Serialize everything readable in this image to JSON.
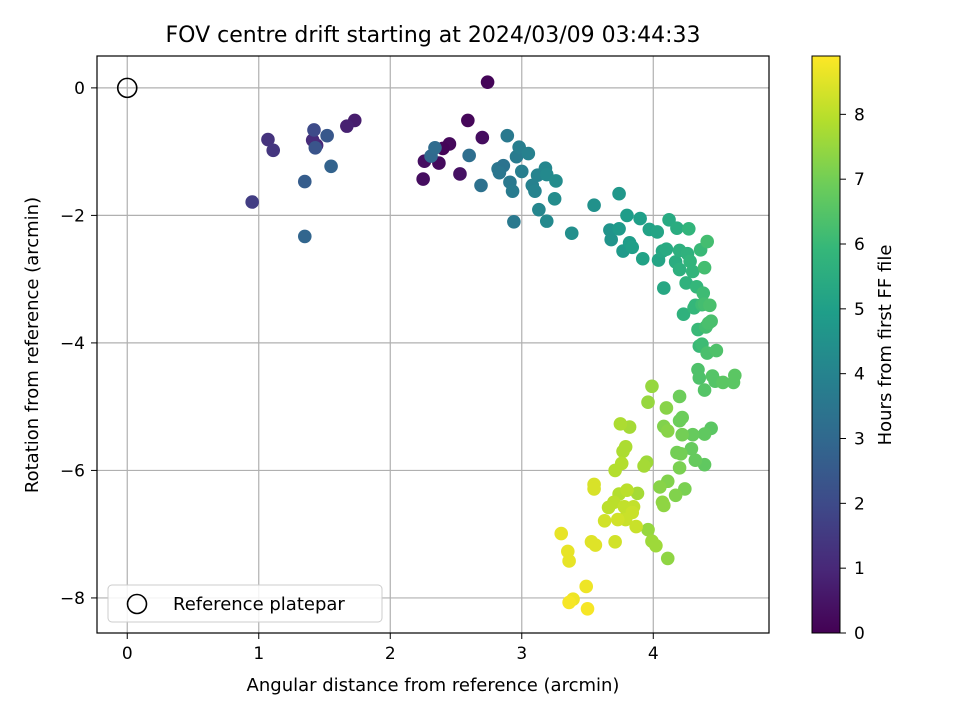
{
  "chart_data": {
    "type": "scatter",
    "title": "FOV centre drift starting at 2024/03/09 03:44:33",
    "xlabel": "Angular distance from reference (arcmin)",
    "ylabel": "Rotation from reference (arcmin)",
    "xlim": [
      -0.23,
      4.88
    ],
    "ylim": [
      -8.55,
      0.5
    ],
    "x_ticks": [
      0,
      1,
      2,
      3,
      4
    ],
    "y_ticks": [
      0,
      -2,
      -4,
      -6,
      -8
    ],
    "grid": true,
    "legend": {
      "placement": "lower-left",
      "entries": [
        "Reference platepar"
      ]
    },
    "reference_point": {
      "x": 0,
      "y": 0,
      "label": "Reference platepar"
    },
    "colorbar": {
      "label": "Hours from first FF file",
      "colormap": "viridis",
      "range": [
        0,
        8.9
      ],
      "ticks": [
        0,
        1,
        2,
        3,
        4,
        5,
        6,
        7,
        8
      ]
    },
    "points": [
      {
        "x": 2.74,
        "y": 0.09,
        "h": 0.1
      },
      {
        "x": 2.59,
        "y": -0.51,
        "h": 0.15
      },
      {
        "x": 2.7,
        "y": -0.78,
        "h": 0.3
      },
      {
        "x": 2.45,
        "y": -0.88,
        "h": 0.2
      },
      {
        "x": 2.4,
        "y": -0.95,
        "h": 0.1
      },
      {
        "x": 2.37,
        "y": -1.18,
        "h": 0.25
      },
      {
        "x": 2.26,
        "y": -1.15,
        "h": 0.35
      },
      {
        "x": 2.25,
        "y": -1.43,
        "h": 0.3
      },
      {
        "x": 2.53,
        "y": -1.35,
        "h": 0.4
      },
      {
        "x": 1.73,
        "y": -0.51,
        "h": 0.7
      },
      {
        "x": 1.67,
        "y": -0.6,
        "h": 0.8
      },
      {
        "x": 1.44,
        "y": -0.9,
        "h": 1.0
      },
      {
        "x": 1.41,
        "y": -0.82,
        "h": 1.1
      },
      {
        "x": 1.07,
        "y": -0.81,
        "h": 1.3
      },
      {
        "x": 1.11,
        "y": -0.98,
        "h": 1.4
      },
      {
        "x": 0.95,
        "y": -1.79,
        "h": 1.6
      },
      {
        "x": 1.42,
        "y": -0.66,
        "h": 2.0
      },
      {
        "x": 1.52,
        "y": -0.75,
        "h": 2.4
      },
      {
        "x": 1.43,
        "y": -0.94,
        "h": 2.3
      },
      {
        "x": 1.35,
        "y": -1.47,
        "h": 2.6
      },
      {
        "x": 1.55,
        "y": -1.23,
        "h": 2.8
      },
      {
        "x": 1.35,
        "y": -2.33,
        "h": 2.9
      },
      {
        "x": 2.31,
        "y": -1.07,
        "h": 3.0
      },
      {
        "x": 2.34,
        "y": -0.94,
        "h": 3.1
      },
      {
        "x": 2.6,
        "y": -1.06,
        "h": 3.2
      },
      {
        "x": 2.69,
        "y": -1.53,
        "h": 3.3
      },
      {
        "x": 2.82,
        "y": -1.27,
        "h": 3.5
      },
      {
        "x": 2.86,
        "y": -1.22,
        "h": 3.4
      },
      {
        "x": 2.83,
        "y": -1.33,
        "h": 3.5
      },
      {
        "x": 2.89,
        "y": -0.75,
        "h": 3.6
      },
      {
        "x": 2.91,
        "y": -1.48,
        "h": 3.6
      },
      {
        "x": 2.93,
        "y": -1.62,
        "h": 3.7
      },
      {
        "x": 2.94,
        "y": -2.1,
        "h": 3.6
      },
      {
        "x": 2.96,
        "y": -1.08,
        "h": 3.7
      },
      {
        "x": 2.98,
        "y": -0.93,
        "h": 3.8
      },
      {
        "x": 3.0,
        "y": -1.31,
        "h": 3.8
      },
      {
        "x": 3.05,
        "y": -1.03,
        "h": 3.9
      },
      {
        "x": 3.08,
        "y": -1.53,
        "h": 3.9
      },
      {
        "x": 3.1,
        "y": -1.62,
        "h": 4.0
      },
      {
        "x": 3.12,
        "y": -1.37,
        "h": 4.0
      },
      {
        "x": 3.13,
        "y": -1.91,
        "h": 4.1
      },
      {
        "x": 3.18,
        "y": -1.26,
        "h": 4.1
      },
      {
        "x": 3.19,
        "y": -1.36,
        "h": 4.2
      },
      {
        "x": 3.19,
        "y": -2.09,
        "h": 4.2
      },
      {
        "x": 3.26,
        "y": -1.46,
        "h": 4.3
      },
      {
        "x": 3.25,
        "y": -1.74,
        "h": 4.3
      },
      {
        "x": 3.38,
        "y": -2.28,
        "h": 4.4
      },
      {
        "x": 3.55,
        "y": -1.84,
        "h": 4.5
      },
      {
        "x": 3.67,
        "y": -2.23,
        "h": 4.6
      },
      {
        "x": 3.68,
        "y": -2.38,
        "h": 4.6
      },
      {
        "x": 3.74,
        "y": -1.66,
        "h": 4.7
      },
      {
        "x": 3.74,
        "y": -2.21,
        "h": 4.8
      },
      {
        "x": 3.77,
        "y": -2.56,
        "h": 4.8
      },
      {
        "x": 3.82,
        "y": -2.43,
        "h": 4.9
      },
      {
        "x": 3.8,
        "y": -2.0,
        "h": 4.9
      },
      {
        "x": 3.84,
        "y": -2.5,
        "h": 5.0
      },
      {
        "x": 3.9,
        "y": -2.05,
        "h": 5.0
      },
      {
        "x": 3.92,
        "y": -2.68,
        "h": 5.1
      },
      {
        "x": 3.97,
        "y": -2.22,
        "h": 5.1
      },
      {
        "x": 4.03,
        "y": -2.26,
        "h": 5.2
      },
      {
        "x": 4.04,
        "y": -2.7,
        "h": 5.2
      },
      {
        "x": 4.07,
        "y": -2.56,
        "h": 5.3
      },
      {
        "x": 4.08,
        "y": -3.14,
        "h": 5.3
      },
      {
        "x": 4.1,
        "y": -2.53,
        "h": 5.4
      },
      {
        "x": 4.12,
        "y": -2.07,
        "h": 5.4
      },
      {
        "x": 4.18,
        "y": -2.2,
        "h": 5.5
      },
      {
        "x": 4.17,
        "y": -2.73,
        "h": 5.5
      },
      {
        "x": 4.2,
        "y": -2.85,
        "h": 5.6
      },
      {
        "x": 4.2,
        "y": -2.55,
        "h": 5.6
      },
      {
        "x": 4.23,
        "y": -3.55,
        "h": 5.7
      },
      {
        "x": 4.25,
        "y": -3.06,
        "h": 5.7
      },
      {
        "x": 4.26,
        "y": -2.6,
        "h": 5.7
      },
      {
        "x": 4.27,
        "y": -2.21,
        "h": 5.8
      },
      {
        "x": 4.28,
        "y": -2.72,
        "h": 5.8
      },
      {
        "x": 4.3,
        "y": -2.88,
        "h": 5.8
      },
      {
        "x": 4.31,
        "y": -3.45,
        "h": 5.9
      },
      {
        "x": 4.32,
        "y": -3.41,
        "h": 5.9
      },
      {
        "x": 4.33,
        "y": -3.12,
        "h": 5.9
      },
      {
        "x": 4.34,
        "y": -3.79,
        "h": 6.0
      },
      {
        "x": 4.35,
        "y": -4.05,
        "h": 6.0
      },
      {
        "x": 4.36,
        "y": -2.54,
        "h": 6.0
      },
      {
        "x": 4.37,
        "y": -4.02,
        "h": 6.1
      },
      {
        "x": 4.37,
        "y": -3.4,
        "h": 6.1
      },
      {
        "x": 4.38,
        "y": -3.22,
        "h": 6.1
      },
      {
        "x": 4.39,
        "y": -3.39,
        "h": 6.2
      },
      {
        "x": 4.39,
        "y": -2.82,
        "h": 6.2
      },
      {
        "x": 4.4,
        "y": -3.75,
        "h": 6.2
      },
      {
        "x": 4.41,
        "y": -2.41,
        "h": 6.2
      },
      {
        "x": 4.42,
        "y": -3.69,
        "h": 6.3
      },
      {
        "x": 4.41,
        "y": -4.16,
        "h": 6.3
      },
      {
        "x": 4.43,
        "y": -3.41,
        "h": 6.3
      },
      {
        "x": 4.44,
        "y": -3.66,
        "h": 6.3
      },
      {
        "x": 4.48,
        "y": -4.12,
        "h": 6.4
      },
      {
        "x": 4.34,
        "y": -4.42,
        "h": 6.4
      },
      {
        "x": 4.35,
        "y": -4.55,
        "h": 6.4
      },
      {
        "x": 4.39,
        "y": -4.74,
        "h": 6.5
      },
      {
        "x": 4.45,
        "y": -4.52,
        "h": 6.5
      },
      {
        "x": 4.47,
        "y": -4.6,
        "h": 6.5
      },
      {
        "x": 4.53,
        "y": -4.62,
        "h": 6.6
      },
      {
        "x": 4.61,
        "y": -4.62,
        "h": 6.6
      },
      {
        "x": 4.62,
        "y": -4.51,
        "h": 6.6
      },
      {
        "x": 4.44,
        "y": -5.34,
        "h": 6.6
      },
      {
        "x": 4.39,
        "y": -5.43,
        "h": 6.7
      },
      {
        "x": 4.39,
        "y": -5.91,
        "h": 6.7
      },
      {
        "x": 4.3,
        "y": -5.44,
        "h": 6.8
      },
      {
        "x": 4.32,
        "y": -5.84,
        "h": 6.8
      },
      {
        "x": 4.29,
        "y": -5.66,
        "h": 6.8
      },
      {
        "x": 4.22,
        "y": -5.17,
        "h": 6.9
      },
      {
        "x": 4.2,
        "y": -5.22,
        "h": 6.9
      },
      {
        "x": 4.2,
        "y": -4.84,
        "h": 6.9
      },
      {
        "x": 4.22,
        "y": -5.44,
        "h": 7.0
      },
      {
        "x": 4.18,
        "y": -5.72,
        "h": 7.0
      },
      {
        "x": 4.21,
        "y": -5.74,
        "h": 7.0
      },
      {
        "x": 4.2,
        "y": -5.96,
        "h": 7.1
      },
      {
        "x": 4.24,
        "y": -6.29,
        "h": 7.1
      },
      {
        "x": 4.17,
        "y": -6.39,
        "h": 7.2
      },
      {
        "x": 4.11,
        "y": -6.17,
        "h": 7.2
      },
      {
        "x": 4.08,
        "y": -5.31,
        "h": 7.2
      },
      {
        "x": 4.11,
        "y": -5.38,
        "h": 7.3
      },
      {
        "x": 4.1,
        "y": -5.02,
        "h": 7.3
      },
      {
        "x": 4.05,
        "y": -6.26,
        "h": 7.3
      },
      {
        "x": 4.07,
        "y": -6.5,
        "h": 7.4
      },
      {
        "x": 4.08,
        "y": -6.55,
        "h": 7.4
      },
      {
        "x": 4.11,
        "y": -7.38,
        "h": 7.4
      },
      {
        "x": 3.99,
        "y": -4.68,
        "h": 7.5
      },
      {
        "x": 3.96,
        "y": -4.93,
        "h": 7.5
      },
      {
        "x": 3.96,
        "y": -6.93,
        "h": 7.5
      },
      {
        "x": 3.99,
        "y": -7.11,
        "h": 7.6
      },
      {
        "x": 4.02,
        "y": -7.18,
        "h": 7.6
      },
      {
        "x": 3.95,
        "y": -5.87,
        "h": 7.6
      },
      {
        "x": 3.93,
        "y": -5.93,
        "h": 7.7
      },
      {
        "x": 3.88,
        "y": -6.36,
        "h": 7.7
      },
      {
        "x": 3.82,
        "y": -5.32,
        "h": 7.7
      },
      {
        "x": 3.75,
        "y": -5.27,
        "h": 7.8
      },
      {
        "x": 3.79,
        "y": -5.63,
        "h": 7.8
      },
      {
        "x": 3.77,
        "y": -5.7,
        "h": 7.8
      },
      {
        "x": 3.76,
        "y": -5.89,
        "h": 7.9
      },
      {
        "x": 3.71,
        "y": -6.0,
        "h": 7.9
      },
      {
        "x": 3.74,
        "y": -6.37,
        "h": 7.9
      },
      {
        "x": 3.8,
        "y": -6.31,
        "h": 8.0
      },
      {
        "x": 3.7,
        "y": -6.5,
        "h": 8.0
      },
      {
        "x": 3.66,
        "y": -6.58,
        "h": 8.0
      },
      {
        "x": 3.78,
        "y": -6.57,
        "h": 8.1
      },
      {
        "x": 3.8,
        "y": -6.7,
        "h": 8.1
      },
      {
        "x": 3.85,
        "y": -6.57,
        "h": 8.1
      },
      {
        "x": 3.84,
        "y": -6.66,
        "h": 8.2
      },
      {
        "x": 3.87,
        "y": -6.88,
        "h": 8.2
      },
      {
        "x": 3.79,
        "y": -6.77,
        "h": 8.2
      },
      {
        "x": 3.73,
        "y": -6.77,
        "h": 8.3
      },
      {
        "x": 3.63,
        "y": -6.79,
        "h": 8.3
      },
      {
        "x": 3.71,
        "y": -7.12,
        "h": 8.3
      },
      {
        "x": 3.55,
        "y": -6.22,
        "h": 8.4
      },
      {
        "x": 3.55,
        "y": -6.29,
        "h": 8.4
      },
      {
        "x": 3.53,
        "y": -7.12,
        "h": 8.5
      },
      {
        "x": 3.56,
        "y": -7.17,
        "h": 8.5
      },
      {
        "x": 3.3,
        "y": -6.99,
        "h": 8.6
      },
      {
        "x": 3.35,
        "y": -7.27,
        "h": 8.6
      },
      {
        "x": 3.36,
        "y": -7.42,
        "h": 8.6
      },
      {
        "x": 3.49,
        "y": -7.82,
        "h": 8.7
      },
      {
        "x": 3.39,
        "y": -8.02,
        "h": 8.7
      },
      {
        "x": 3.36,
        "y": -8.07,
        "h": 8.8
      },
      {
        "x": 3.5,
        "y": -8.17,
        "h": 8.8
      }
    ]
  }
}
